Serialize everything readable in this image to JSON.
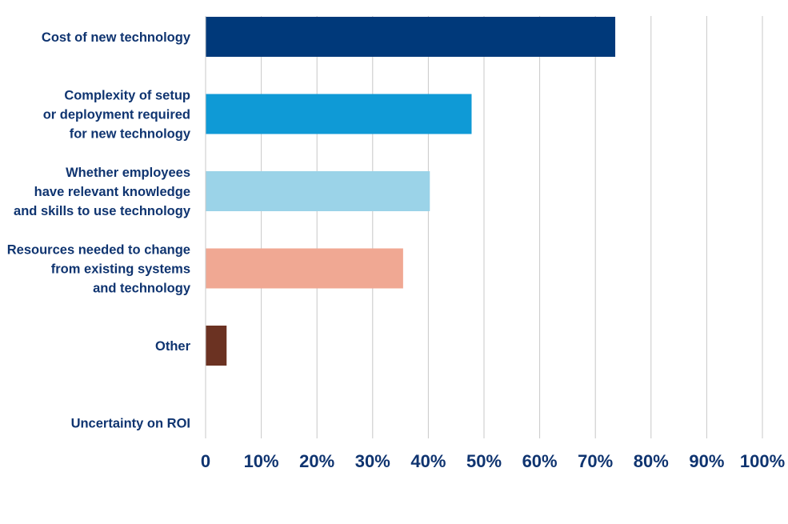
{
  "chart_data": {
    "type": "bar",
    "orientation": "horizontal",
    "categories": [
      "Cost of new technology",
      "Complexity of setup or deployment required for new technology",
      "Whether employees have relevant knowledge and skills to use technology",
      "Resources needed to change from existing systems and technology",
      "Other",
      "Uncertainty on ROI"
    ],
    "category_lines": [
      [
        "Cost of new technology"
      ],
      [
        "Complexity of setup",
        "or deployment required",
        "for new technology"
      ],
      [
        "Whether employees",
        "have relevant knowledge",
        "and skills to use technology"
      ],
      [
        "Resources needed to change",
        "from existing systems",
        "and technology"
      ],
      [
        "Other"
      ],
      [
        "Uncertainty on ROI"
      ]
    ],
    "values": [
      73.5,
      47.7,
      40.2,
      35.4,
      3.7,
      0
    ],
    "colors": [
      "#00397a",
      "#0f9ad6",
      "#9bd3e8",
      "#f0a893",
      "#6b3222",
      "#cccccc"
    ],
    "x_ticks": [
      "0",
      "10%",
      "20%",
      "30%",
      "40%",
      "50%",
      "60%",
      "70%",
      "80%",
      "90%",
      "100%"
    ],
    "xlim": [
      0,
      100
    ],
    "grid": true,
    "title": "",
    "xlabel": "",
    "ylabel": ""
  }
}
